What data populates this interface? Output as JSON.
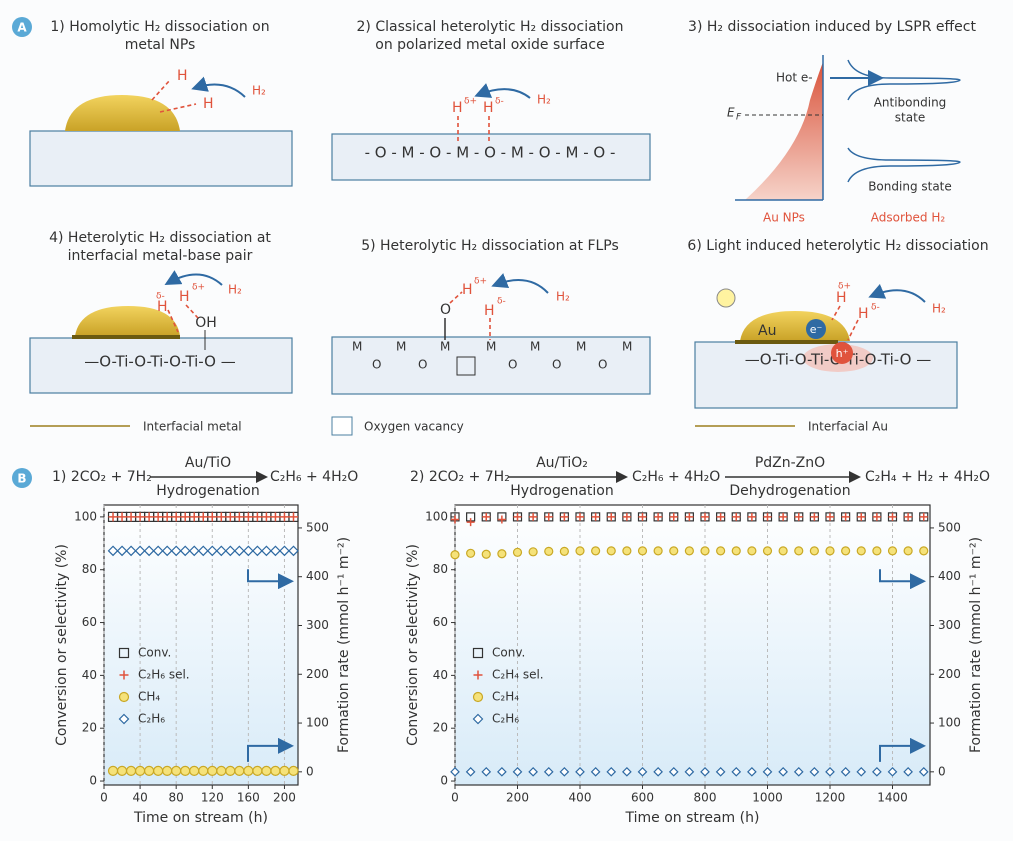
{
  "panel_a": {
    "label": "A",
    "p1": {
      "title": [
        "1) Homolytic H₂ dissociation on",
        "metal NPs"
      ],
      "h": "H",
      "h2": "H₂"
    },
    "p2": {
      "title": [
        "2) Classical heterolytic H₂ dissociation",
        "on polarized metal oxide surface"
      ],
      "chain": "- O - M - O - M - O - M - O - M - O -",
      "h": "H",
      "dplus": "δ+",
      "dminus": "δ-",
      "h2": "H₂"
    },
    "p3": {
      "title": "3) H₂ dissociation induced by LSPR effect",
      "hot": "Hot e-",
      "ef": "E",
      "ef_sub": "F",
      "antibonding": [
        "Antibonding",
        "state"
      ],
      "bonding": "Bonding state",
      "au": "Au NPs",
      "adsorbed": "Adsorbed H₂"
    },
    "p4": {
      "title": [
        "4) Heterolytic H₂ dissociation at",
        "interfacial metal-base pair"
      ],
      "chain": "—O-Ti-O-Ti-O-Ti-O —",
      "oh": "OH",
      "h": "H",
      "dplus": "δ+",
      "dminus": "δ-",
      "h2": "H₂",
      "legend": "Interfacial metal"
    },
    "p5": {
      "title": "5) Heterolytic H₂ dissociation at FLPs",
      "m": "M",
      "o": "O",
      "h": "H",
      "dplus": "δ+",
      "dminus": "δ-",
      "h2": "H₂",
      "legend": "Oxygen vacancy"
    },
    "p6": {
      "title": "6) Light induced heterolytic H₂ dissociation",
      "chain": "—O-Ti-O-Ti-O-Ti-O-Ti-O —",
      "au": "Au",
      "e": "e⁻",
      "hole": "h⁺",
      "h": "H",
      "dplus": "δ+",
      "dminus": "δ-",
      "h2": "H₂",
      "legend": "Interfacial Au"
    }
  },
  "panel_b": {
    "label": "B",
    "r1": {
      "reactants": "1) 2CO₂ + 7H₂",
      "catalyst": "Au/TiO",
      "process": "Hydrogenation",
      "products": "C₂H₆ + 4H₂O"
    },
    "r2": {
      "reactants": "2) 2CO₂ + 7H₂",
      "catalyst": "Au/TiO₂",
      "process": "Hydrogenation",
      "intermediate": "C₂H₆ + 4H₂O",
      "catalyst2": "PdZn-ZnO",
      "process2": "Dehydrogenation",
      "products": "C₂H₄ + H₂ + 4H₂O"
    }
  },
  "chart_data": [
    {
      "type": "scatter",
      "xlabel": "Time on stream (h)",
      "ylabel": "Conversion or selectivity (%)",
      "y2label": "Formation rate (mmol h⁻¹ m⁻²)",
      "x": [
        10,
        20,
        30,
        40,
        50,
        60,
        70,
        80,
        90,
        100,
        110,
        120,
        130,
        140,
        150,
        160,
        170,
        180,
        190,
        200,
        210
      ],
      "xlim": [
        0,
        215
      ],
      "xticks": [
        0,
        40,
        80,
        120,
        160,
        200
      ],
      "ylim": [
        -1.5,
        104.5
      ],
      "yticks": [
        0,
        20,
        40,
        60,
        80,
        100
      ],
      "y2lim": [
        -27,
        547
      ],
      "y2ticks": [
        0,
        100,
        200,
        300,
        400,
        500
      ],
      "grid": true,
      "series": [
        {
          "name": "Conv.",
          "color": "#333333",
          "marker": "square",
          "values": [
            100,
            100,
            100,
            100,
            100,
            100,
            100,
            100,
            100,
            100,
            100,
            100,
            100,
            100,
            100,
            100,
            100,
            100,
            100,
            100,
            100
          ]
        },
        {
          "name": "C₂H₆ sel.",
          "color": "#e0533c",
          "marker": "plus",
          "values": [
            100,
            100,
            100,
            100,
            100,
            100,
            100,
            100,
            100,
            100,
            100,
            100,
            100,
            100,
            100,
            100,
            100,
            100,
            100,
            100,
            100
          ]
        },
        {
          "name": "CH₄",
          "color": "#c9a825",
          "marker": "circle",
          "axis": "y2",
          "values": [
            2,
            2,
            2,
            2,
            2,
            2,
            2,
            2,
            2,
            2,
            2,
            2,
            2,
            2,
            2,
            2,
            2,
            2,
            2,
            2,
            2
          ]
        },
        {
          "name": "C₂H₆",
          "color": "#2f6aa3",
          "marker": "diamond",
          "axis": "y2",
          "values": [
            453,
            453,
            453,
            453,
            453,
            453,
            453,
            453,
            453,
            453,
            453,
            453,
            453,
            453,
            453,
            453,
            453,
            453,
            453,
            453,
            453
          ]
        }
      ]
    },
    {
      "type": "scatter",
      "xlabel": "Time on stream (h)",
      "ylabel": "Conversion or selectivity (%)",
      "y2label": "Formation rate (mmol h⁻¹ m⁻²)",
      "x": [
        0,
        50,
        100,
        150,
        200,
        250,
        300,
        350,
        400,
        450,
        500,
        550,
        600,
        650,
        700,
        750,
        800,
        850,
        900,
        950,
        1000,
        1050,
        1100,
        1150,
        1200,
        1250,
        1300,
        1350,
        1400,
        1450,
        1500
      ],
      "xlim": [
        0,
        1520
      ],
      "xticks": [
        0,
        200,
        400,
        600,
        800,
        1000,
        1200,
        1400
      ],
      "ylim": [
        -1.5,
        104.5
      ],
      "yticks": [
        0,
        20,
        40,
        60,
        80,
        100
      ],
      "y2lim": [
        -27,
        547
      ],
      "y2ticks": [
        0,
        100,
        200,
        300,
        400,
        500
      ],
      "grid": true,
      "series": [
        {
          "name": "Conv.",
          "color": "#333333",
          "marker": "square",
          "values": [
            100,
            100,
            100,
            100,
            100,
            100,
            100,
            100,
            100,
            100,
            100,
            100,
            100,
            100,
            100,
            100,
            100,
            100,
            100,
            100,
            100,
            100,
            100,
            100,
            100,
            100,
            100,
            100,
            100,
            100,
            100
          ]
        },
        {
          "name": "C₂H₄ sel.",
          "color": "#e0533c",
          "marker": "plus",
          "values": [
            99,
            98,
            100,
            99,
            100,
            100,
            100,
            100,
            100,
            100,
            100,
            100,
            100,
            100,
            100,
            100,
            100,
            100,
            100,
            100,
            100,
            100,
            100,
            100,
            100,
            100,
            100,
            100,
            100,
            100,
            100
          ]
        },
        {
          "name": "C₂H₄",
          "color": "#c9a825",
          "marker": "circle",
          "axis": "y2",
          "values": [
            445,
            448,
            446,
            447,
            450,
            451,
            452,
            452,
            453,
            453,
            453,
            453,
            453,
            453,
            453,
            453,
            453,
            453,
            453,
            453,
            453,
            453,
            453,
            453,
            453,
            453,
            453,
            453,
            453,
            453,
            453
          ]
        },
        {
          "name": "C₂H₆",
          "color": "#2f6aa3",
          "marker": "diamond",
          "axis": "y2",
          "values": [
            0,
            0,
            0,
            0,
            0,
            0,
            0,
            0,
            0,
            0,
            0,
            0,
            0,
            0,
            0,
            0,
            0,
            0,
            0,
            0,
            0,
            0,
            0,
            0,
            0,
            0,
            0,
            0,
            0,
            0,
            0
          ]
        }
      ]
    }
  ]
}
